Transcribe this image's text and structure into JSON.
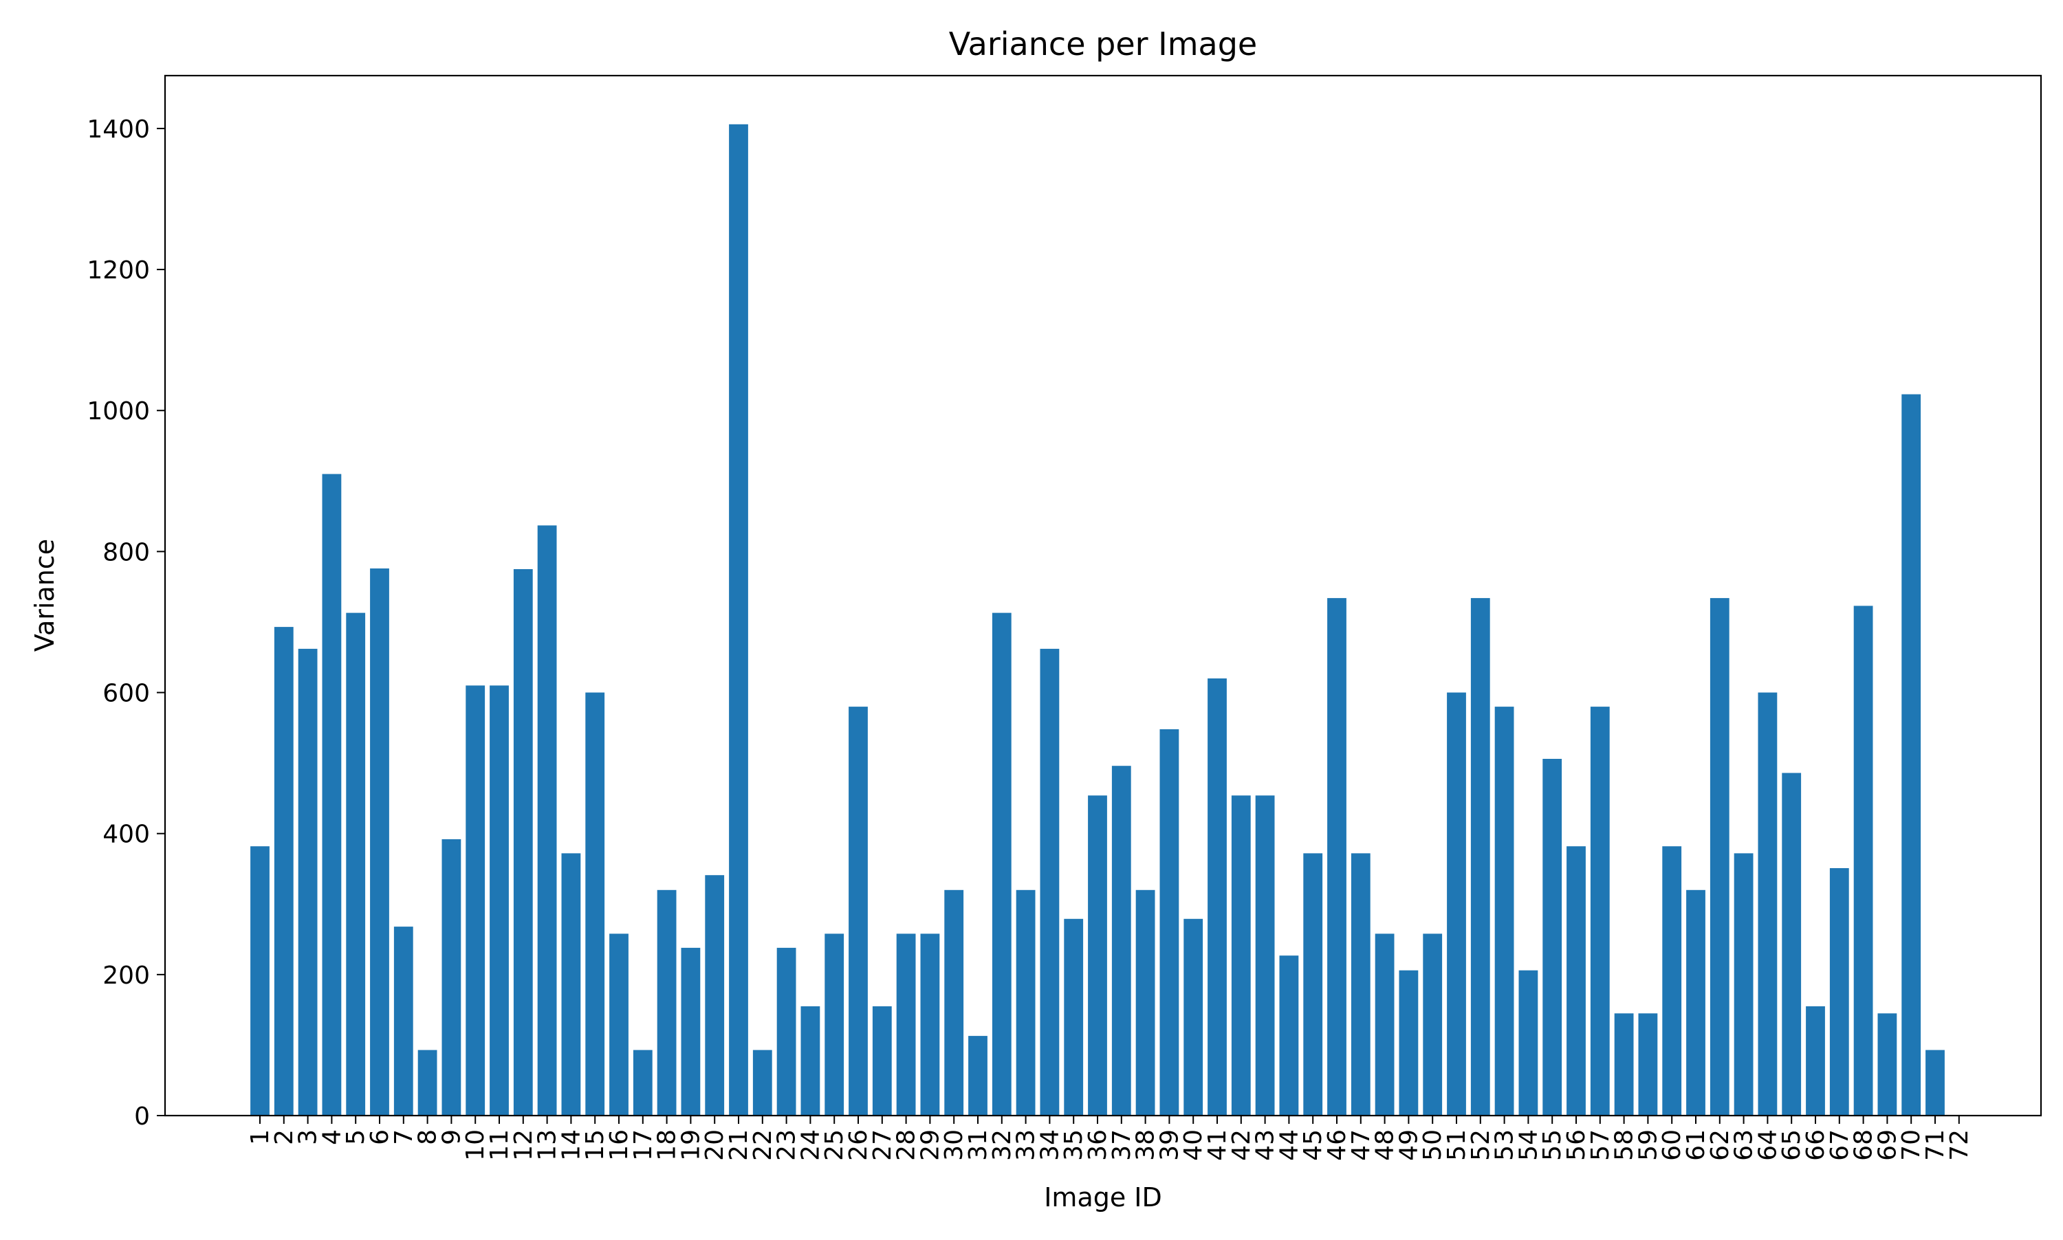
{
  "chart_data": {
    "type": "bar",
    "title": "Variance per Image",
    "xlabel": "Image ID",
    "ylabel": "Variance",
    "categories": [
      "1",
      "2",
      "3",
      "4",
      "5",
      "6",
      "7",
      "8",
      "9",
      "10",
      "11",
      "12",
      "13",
      "14",
      "15",
      "16",
      "17",
      "18",
      "19",
      "20",
      "21",
      "22",
      "23",
      "24",
      "25",
      "26",
      "27",
      "28",
      "29",
      "30",
      "31",
      "32",
      "33",
      "34",
      "35",
      "36",
      "37",
      "38",
      "39",
      "40",
      "41",
      "42",
      "43",
      "44",
      "45",
      "46",
      "47",
      "48",
      "49",
      "50",
      "51",
      "52",
      "53",
      "54",
      "55",
      "56",
      "57",
      "58",
      "59",
      "60",
      "61",
      "62",
      "63",
      "64",
      "65",
      "66",
      "67",
      "68",
      "69",
      "70",
      "71",
      "72"
    ],
    "values": [
      382,
      693,
      662,
      910,
      713,
      776,
      268,
      93,
      392,
      610,
      610,
      775,
      837,
      372,
      600,
      258,
      93,
      320,
      238,
      341,
      1406,
      93,
      238,
      155,
      258,
      580,
      155,
      258,
      258,
      320,
      113,
      713,
      320,
      662,
      279,
      454,
      496,
      320,
      548,
      279,
      620,
      454,
      454,
      227,
      372,
      734,
      372,
      258,
      206,
      258,
      600,
      734,
      580,
      206,
      506,
      382,
      580,
      145,
      145,
      382,
      320,
      734,
      372,
      600,
      486,
      155,
      351,
      723,
      145,
      1023,
      93,
      0
    ],
    "ylim": [
      0,
      1475
    ],
    "yticks": [
      0,
      200,
      400,
      600,
      800,
      1000,
      1200,
      1400
    ],
    "bar_color": "#1f77b4",
    "grid": false,
    "legend": "none"
  }
}
